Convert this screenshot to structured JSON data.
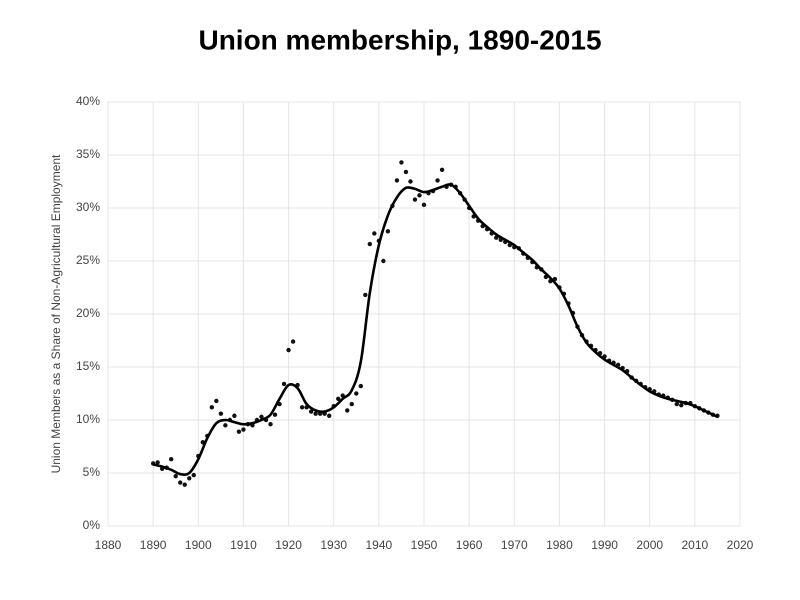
{
  "chart_data": {
    "type": "scatter",
    "title": "Union membership, 1890-2015",
    "y_label": "Union Members as a Share of Non-Agricultural Employment",
    "xlim": [
      1880,
      2020
    ],
    "xticks": [
      1880,
      1890,
      1900,
      1910,
      1920,
      1930,
      1940,
      1950,
      1960,
      1970,
      1980,
      1990,
      2000,
      2010,
      2020
    ],
    "ylim": [
      0,
      40
    ],
    "yticks": [
      {
        "value": 0,
        "label": "0%"
      },
      {
        "value": 5,
        "label": "5%"
      },
      {
        "value": 10,
        "label": "10%"
      },
      {
        "value": 15,
        "label": "15%"
      },
      {
        "value": 20,
        "label": "20%"
      },
      {
        "value": 25,
        "label": "25%"
      },
      {
        "value": 30,
        "label": "30%"
      },
      {
        "value": 35,
        "label": "35%"
      },
      {
        "value": 40,
        "label": "40%"
      }
    ],
    "grid": true,
    "series": [
      {
        "type": "scatter",
        "color": "#111111",
        "x": [
          1890,
          1891,
          1892,
          1893,
          1894,
          1895,
          1896,
          1897,
          1898,
          1899,
          1900,
          1901,
          1902,
          1903,
          1904,
          1905,
          1906,
          1907,
          1908,
          1909,
          1910,
          1911,
          1912,
          1913,
          1914,
          1915,
          1916,
          1917,
          1918,
          1919,
          1920,
          1921,
          1922,
          1923,
          1924,
          1925,
          1926,
          1927,
          1928,
          1929,
          1930,
          1931,
          1932,
          1933,
          1934,
          1935,
          1936,
          1937,
          1938,
          1939,
          1940,
          1941,
          1942,
          1943,
          1944,
          1945,
          1946,
          1947,
          1948,
          1949,
          1950,
          1951,
          1952,
          1953,
          1954,
          1955,
          1956,
          1957,
          1958,
          1959,
          1960,
          1961,
          1962,
          1963,
          1964,
          1965,
          1966,
          1967,
          1968,
          1969,
          1970,
          1971,
          1972,
          1973,
          1974,
          1975,
          1976,
          1977,
          1978,
          1979,
          1980,
          1981,
          1982,
          1983,
          1984,
          1985,
          1986,
          1987,
          1988,
          1989,
          1990,
          1991,
          1992,
          1993,
          1994,
          1995,
          1996,
          1997,
          1998,
          1999,
          2000,
          2001,
          2002,
          2003,
          2004,
          2005,
          2006,
          2007,
          2008,
          2009,
          2010,
          2011,
          2012,
          2013,
          2014,
          2015
        ],
        "values": [
          5.9,
          6.0,
          5.4,
          5.5,
          6.3,
          4.7,
          4.1,
          3.9,
          4.5,
          4.8,
          6.6,
          7.9,
          8.5,
          11.2,
          11.8,
          10.6,
          9.5,
          10.0,
          10.4,
          8.9,
          9.1,
          9.6,
          9.5,
          10.0,
          10.3,
          10.0,
          9.6,
          10.5,
          11.5,
          13.4,
          16.6,
          17.4,
          13.3,
          11.2,
          11.2,
          10.8,
          10.6,
          10.6,
          10.6,
          10.4,
          11.3,
          12.0,
          12.3,
          10.9,
          11.5,
          12.5,
          13.2,
          21.8,
          26.6,
          27.6,
          26.9,
          25.0,
          27.8,
          30.2,
          32.6,
          34.3,
          33.4,
          32.5,
          30.8,
          31.2,
          30.3,
          31.4,
          31.6,
          32.6,
          33.6,
          32.0,
          32.2,
          32.0,
          31.4,
          30.8,
          30.0,
          29.2,
          28.8,
          28.3,
          28.0,
          27.6,
          27.2,
          27.0,
          26.8,
          26.5,
          26.3,
          26.2,
          25.7,
          25.3,
          24.9,
          24.4,
          24.2,
          23.5,
          23.1,
          23.3,
          22.5,
          21.9,
          21.0,
          20.1,
          18.8,
          18.0,
          17.4,
          17.0,
          16.6,
          16.3,
          16.0,
          15.6,
          15.4,
          15.2,
          14.9,
          14.6,
          14.0,
          13.7,
          13.4,
          13.1,
          12.9,
          12.7,
          12.4,
          12.3,
          12.1,
          11.9,
          11.5,
          11.4,
          11.6,
          11.6,
          11.3,
          11.1,
          10.9,
          10.7,
          10.5,
          10.4
        ]
      },
      {
        "type": "line",
        "color": "#000000",
        "x": [
          1890,
          1892,
          1894,
          1896,
          1898,
          1900,
          1902,
          1904,
          1906,
          1908,
          1910,
          1912,
          1914,
          1916,
          1918,
          1920,
          1922,
          1924,
          1926,
          1928,
          1930,
          1932,
          1934,
          1936,
          1938,
          1940,
          1942,
          1944,
          1946,
          1948,
          1950,
          1952,
          1954,
          1956,
          1958,
          1960,
          1962,
          1964,
          1966,
          1968,
          1970,
          1972,
          1974,
          1976,
          1978,
          1980,
          1982,
          1984,
          1986,
          1988,
          1990,
          1992,
          1994,
          1996,
          1998,
          2000,
          2002,
          2004,
          2006,
          2008,
          2010,
          2012,
          2014,
          2015
        ],
        "values": [
          5.8,
          5.6,
          5.3,
          4.9,
          5.0,
          6.3,
          8.3,
          9.7,
          10.0,
          9.8,
          9.6,
          9.7,
          10.0,
          10.5,
          12.0,
          13.3,
          13.0,
          11.5,
          10.9,
          10.8,
          11.2,
          12.0,
          12.8,
          15.5,
          22.0,
          26.5,
          29.3,
          31.0,
          31.9,
          31.8,
          31.5,
          31.7,
          32.0,
          32.2,
          31.4,
          30.2,
          29.0,
          28.2,
          27.5,
          27.0,
          26.5,
          25.8,
          25.1,
          24.2,
          23.4,
          22.4,
          20.8,
          18.8,
          17.3,
          16.4,
          15.7,
          15.2,
          14.7,
          14.0,
          13.3,
          12.7,
          12.3,
          12.0,
          11.8,
          11.6,
          11.3,
          10.9,
          10.5,
          10.3
        ]
      }
    ]
  }
}
